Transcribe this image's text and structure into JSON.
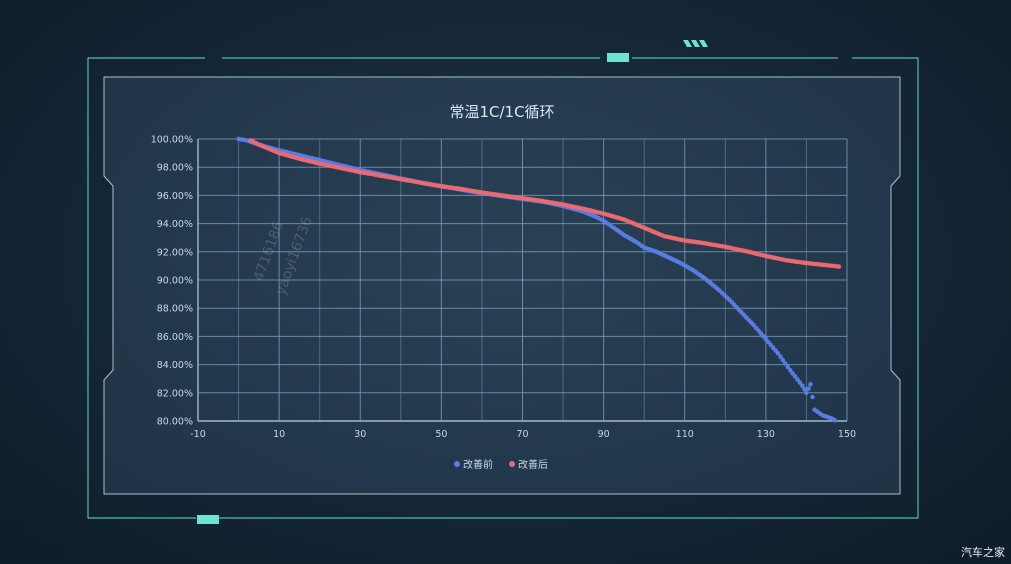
{
  "chart_data": {
    "type": "scatter",
    "title": "常温1C/1C循环",
    "xlabel": "",
    "ylabel": "",
    "xlim": [
      -10,
      150
    ],
    "ylim": [
      80,
      100
    ],
    "x_ticks": [
      -10,
      10,
      30,
      50,
      70,
      90,
      110,
      130,
      150
    ],
    "y_ticks": [
      "80.00%",
      "82.00%",
      "84.00%",
      "86.00%",
      "88.00%",
      "90.00%",
      "92.00%",
      "94.00%",
      "96.00%",
      "98.00%",
      "100.00%"
    ],
    "grid": true,
    "legend_position": "bottom",
    "series": [
      {
        "name": "改善前",
        "color": "#5b7de8",
        "points": [
          [
            0,
            100.0
          ],
          [
            2,
            99.9
          ],
          [
            5,
            99.6
          ],
          [
            10,
            99.2
          ],
          [
            15,
            98.85
          ],
          [
            20,
            98.5
          ],
          [
            25,
            98.15
          ],
          [
            30,
            97.8
          ],
          [
            35,
            97.5
          ],
          [
            40,
            97.2
          ],
          [
            45,
            96.9
          ],
          [
            50,
            96.65
          ],
          [
            55,
            96.4
          ],
          [
            60,
            96.15
          ],
          [
            65,
            95.95
          ],
          [
            70,
            95.75
          ],
          [
            75,
            95.55
          ],
          [
            80,
            95.25
          ],
          [
            85,
            94.85
          ],
          [
            88,
            94.5
          ],
          [
            90,
            94.2
          ],
          [
            92,
            93.8
          ],
          [
            95,
            93.2
          ],
          [
            98,
            92.7
          ],
          [
            100,
            92.3
          ],
          [
            103,
            92.0
          ],
          [
            106,
            91.6
          ],
          [
            109,
            91.2
          ],
          [
            112,
            90.7
          ],
          [
            115,
            90.1
          ],
          [
            118,
            89.4
          ],
          [
            121,
            88.6
          ],
          [
            124,
            87.7
          ],
          [
            127,
            86.8
          ],
          [
            130,
            85.8
          ],
          [
            133,
            84.8
          ],
          [
            136,
            83.6
          ],
          [
            139,
            82.5
          ],
          [
            140,
            82.0
          ],
          [
            141,
            82.6
          ],
          [
            142,
            80.8
          ],
          [
            144,
            80.4
          ],
          [
            146,
            80.2
          ],
          [
            147,
            80.05
          ]
        ]
      },
      {
        "name": "改善后",
        "color": "#ee6a70",
        "points": [
          [
            3,
            99.9
          ],
          [
            5,
            99.6
          ],
          [
            10,
            99.0
          ],
          [
            15,
            98.6
          ],
          [
            20,
            98.25
          ],
          [
            25,
            97.95
          ],
          [
            30,
            97.65
          ],
          [
            35,
            97.4
          ],
          [
            40,
            97.15
          ],
          [
            45,
            96.9
          ],
          [
            50,
            96.65
          ],
          [
            55,
            96.45
          ],
          [
            60,
            96.2
          ],
          [
            65,
            96.0
          ],
          [
            70,
            95.8
          ],
          [
            75,
            95.6
          ],
          [
            80,
            95.35
          ],
          [
            85,
            95.05
          ],
          [
            90,
            94.7
          ],
          [
            95,
            94.3
          ],
          [
            100,
            93.7
          ],
          [
            105,
            93.1
          ],
          [
            110,
            92.8
          ],
          [
            115,
            92.6
          ],
          [
            120,
            92.35
          ],
          [
            125,
            92.05
          ],
          [
            130,
            91.7
          ],
          [
            135,
            91.4
          ],
          [
            140,
            91.2
          ],
          [
            145,
            91.05
          ],
          [
            148,
            90.95
          ]
        ]
      }
    ]
  },
  "watermark": {
    "line1": "4716186",
    "line2": "yaoyi16736"
  },
  "footer": {
    "brand": "汽车之家"
  }
}
